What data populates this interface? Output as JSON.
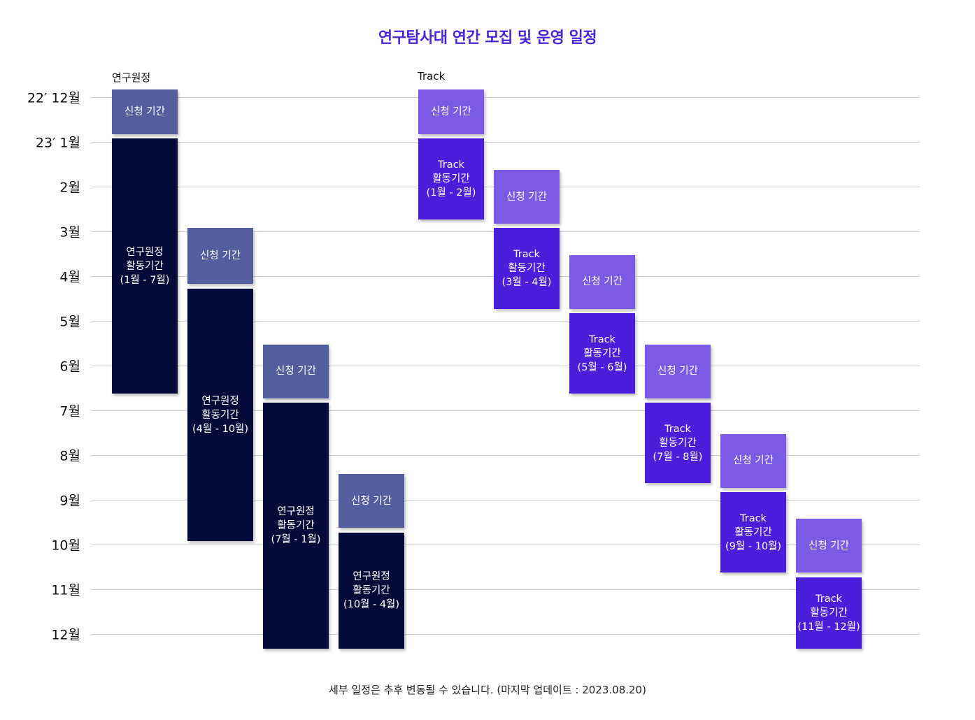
{
  "title": "연구탐사대 연간 모집 및 운영 일정",
  "group_labels": {
    "research": "연구원정",
    "track": "Track"
  },
  "months": [
    "22′ 12월",
    "23′ 1월",
    "2월",
    "3월",
    "4월",
    "5월",
    "6월",
    "7월",
    "8월",
    "9월",
    "10월",
    "11월",
    "12월"
  ],
  "colors": {
    "research_apply": "#545d9e",
    "research_active": "#040b38",
    "track_apply": "#7b5ae6",
    "track_active": "#4a1edb"
  },
  "blocks": [
    {
      "group": "research",
      "kind": "apply",
      "column": 0,
      "start": 0,
      "end": 1,
      "label": "신청 기간"
    },
    {
      "group": "research",
      "kind": "active",
      "column": 0,
      "start": 1.1,
      "end": 6.8,
      "label": "연구원정\n활동기간\n(1월 - 7월)"
    },
    {
      "group": "research",
      "kind": "apply",
      "column": 1,
      "start": 3.1,
      "end": 4.35,
      "label": "신청 기간"
    },
    {
      "group": "research",
      "kind": "active",
      "column": 1,
      "start": 4.45,
      "end": 10.1,
      "label": "연구원정\n활동기간\n(4월 - 10월)"
    },
    {
      "group": "research",
      "kind": "apply",
      "column": 2,
      "start": 5.7,
      "end": 6.9,
      "label": "신청 기간"
    },
    {
      "group": "research",
      "kind": "active",
      "column": 2,
      "start": 7,
      "end": 12.5,
      "label": "연구원정\n활동기간\n(7월 - 1월)"
    },
    {
      "group": "research",
      "kind": "apply",
      "column": 3,
      "start": 8.6,
      "end": 9.8,
      "label": "신청 기간"
    },
    {
      "group": "research",
      "kind": "active",
      "column": 3,
      "start": 9.9,
      "end": 12.5,
      "label": "연구원정\n활동기간\n(10월 - 4월)"
    },
    {
      "group": "track",
      "kind": "apply",
      "column": 0,
      "start": 0,
      "end": 1,
      "label": "신청 기간"
    },
    {
      "group": "track",
      "kind": "active",
      "column": 0,
      "start": 1.1,
      "end": 2.9,
      "label": "Track\n활동기간\n(1월 - 2월)"
    },
    {
      "group": "track",
      "kind": "apply",
      "column": 1,
      "start": 1.8,
      "end": 3,
      "label": "신청 기간"
    },
    {
      "group": "track",
      "kind": "active",
      "column": 1,
      "start": 3.1,
      "end": 4.9,
      "label": "Track\n활동기간\n(3월 - 4월)"
    },
    {
      "group": "track",
      "kind": "apply",
      "column": 2,
      "start": 3.7,
      "end": 4.9,
      "label": "신청 기간"
    },
    {
      "group": "track",
      "kind": "active",
      "column": 2,
      "start": 5,
      "end": 6.8,
      "label": "Track\n활동기간\n(5월 - 6월)"
    },
    {
      "group": "track",
      "kind": "apply",
      "column": 3,
      "start": 5.7,
      "end": 6.9,
      "label": "신청 기간"
    },
    {
      "group": "track",
      "kind": "active",
      "column": 3,
      "start": 7,
      "end": 8.8,
      "label": "Track\n활동기간\n(7월 - 8월)"
    },
    {
      "group": "track",
      "kind": "apply",
      "column": 4,
      "start": 7.7,
      "end": 8.9,
      "label": "신청 기간"
    },
    {
      "group": "track",
      "kind": "active",
      "column": 4,
      "start": 9,
      "end": 10.8,
      "label": "Track\n활동기간\n(9월 - 10월)"
    },
    {
      "group": "track",
      "kind": "apply",
      "column": 5,
      "start": 9.6,
      "end": 10.8,
      "label": "신청 기간"
    },
    {
      "group": "track",
      "kind": "active",
      "column": 5,
      "start": 10.9,
      "end": 12.5,
      "label": "Track\n활동기간\n(11월 - 12월)"
    }
  ],
  "footer": "세부 일정은 추후 변동될 수 있습니다. (마지막 업데이트 : 2023.08.20)"
}
